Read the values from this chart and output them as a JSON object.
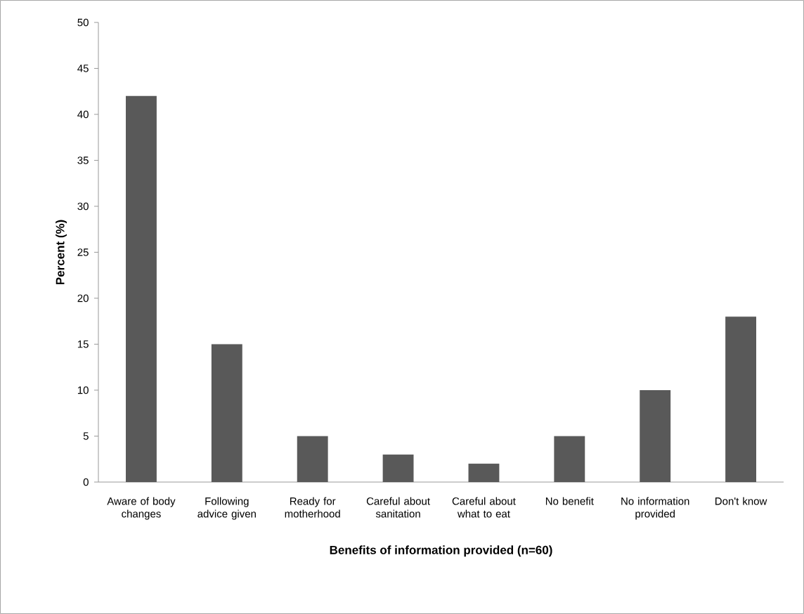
{
  "chart_data": {
    "type": "bar",
    "xlabel": "Benefits of information provided (n=60)",
    "ylabel": "Percent (%)",
    "categories": [
      "Aware of body changes",
      "Following advice given",
      "Ready for motherhood",
      "Careful about sanitation",
      "Careful about what to eat",
      "No benefit",
      "No information provided",
      "Don't know"
    ],
    "values": [
      42,
      15,
      5,
      3,
      2,
      5,
      10,
      18
    ],
    "color": "#595959",
    "ylim": [
      0,
      50
    ],
    "yticks": [
      0,
      5,
      10,
      15,
      20,
      25,
      30,
      35,
      40,
      45,
      50
    ]
  }
}
